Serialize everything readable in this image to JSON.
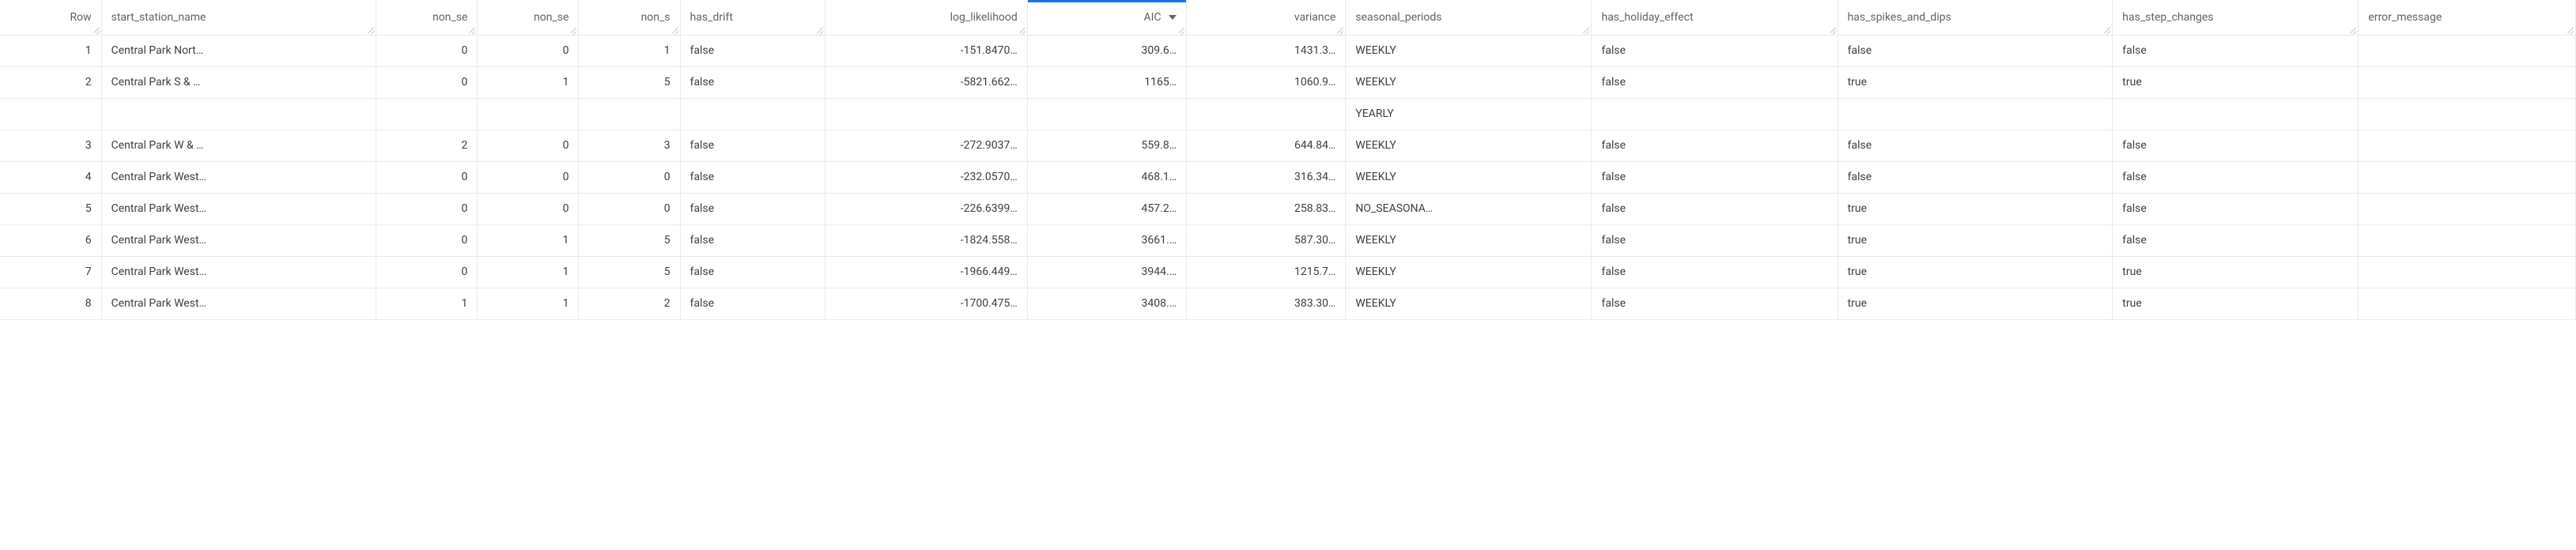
{
  "columns": {
    "row": {
      "label": "Row",
      "align": "right",
      "sorted": false
    },
    "name": {
      "label": "start_station_name",
      "align": "left",
      "sorted": false
    },
    "ns1": {
      "label": "non_se",
      "align": "right",
      "sorted": false
    },
    "ns2": {
      "label": "non_se",
      "align": "right",
      "sorted": false
    },
    "ns3": {
      "label": "non_s",
      "align": "right",
      "sorted": false
    },
    "drift": {
      "label": "has_drift",
      "align": "left",
      "sorted": false
    },
    "ll": {
      "label": "log_likelihood",
      "align": "right",
      "sorted": false
    },
    "aic": {
      "label": "AIC",
      "align": "right",
      "sorted": true
    },
    "var": {
      "label": "variance",
      "align": "right",
      "sorted": false
    },
    "seas": {
      "label": "seasonal_periods",
      "align": "left",
      "sorted": false
    },
    "hol": {
      "label": "has_holiday_effect",
      "align": "left",
      "sorted": false
    },
    "spk": {
      "label": "has_spikes_and_dips",
      "align": "left",
      "sorted": false
    },
    "step": {
      "label": "has_step_changes",
      "align": "left",
      "sorted": false
    },
    "err": {
      "label": "error_message",
      "align": "left",
      "sorted": false
    }
  },
  "rows": [
    {
      "row": "1",
      "name": "Central Park Nort…",
      "ns1": "0",
      "ns2": "0",
      "ns3": "1",
      "drift": "false",
      "ll": "-151.8470…",
      "aic": "309.6…",
      "var": "1431.3…",
      "seas": "WEEKLY",
      "hol": "false",
      "spk": "false",
      "step": "false",
      "err": ""
    },
    {
      "row": "2",
      "name": "Central Park S & …",
      "ns1": "0",
      "ns2": "1",
      "ns3": "5",
      "drift": "false",
      "ll": "-5821.662…",
      "aic": "1165…",
      "var": "1060.9…",
      "seas": "WEEKLY",
      "hol": "false",
      "spk": "true",
      "step": "true",
      "err": ""
    },
    {
      "row": "",
      "name": "",
      "ns1": "",
      "ns2": "",
      "ns3": "",
      "drift": "",
      "ll": "",
      "aic": "",
      "var": "",
      "seas": "YEARLY",
      "hol": "",
      "spk": "",
      "step": "",
      "err": ""
    },
    {
      "row": "3",
      "name": "Central Park W & …",
      "ns1": "2",
      "ns2": "0",
      "ns3": "3",
      "drift": "false",
      "ll": "-272.9037…",
      "aic": "559.8…",
      "var": "644.84…",
      "seas": "WEEKLY",
      "hol": "false",
      "spk": "false",
      "step": "false",
      "err": ""
    },
    {
      "row": "4",
      "name": "Central Park West…",
      "ns1": "0",
      "ns2": "0",
      "ns3": "0",
      "drift": "false",
      "ll": "-232.0570…",
      "aic": "468.1…",
      "var": "316.34…",
      "seas": "WEEKLY",
      "hol": "false",
      "spk": "false",
      "step": "false",
      "err": ""
    },
    {
      "row": "5",
      "name": "Central Park West…",
      "ns1": "0",
      "ns2": "0",
      "ns3": "0",
      "drift": "false",
      "ll": "-226.6399…",
      "aic": "457.2…",
      "var": "258.83…",
      "seas": "NO_SEASONA…",
      "hol": "false",
      "spk": "true",
      "step": "false",
      "err": ""
    },
    {
      "row": "6",
      "name": "Central Park West…",
      "ns1": "0",
      "ns2": "1",
      "ns3": "5",
      "drift": "false",
      "ll": "-1824.558…",
      "aic": "3661.…",
      "var": "587.30…",
      "seas": "WEEKLY",
      "hol": "false",
      "spk": "true",
      "step": "false",
      "err": ""
    },
    {
      "row": "7",
      "name": "Central Park West…",
      "ns1": "0",
      "ns2": "1",
      "ns3": "5",
      "drift": "false",
      "ll": "-1966.449…",
      "aic": "3944.…",
      "var": "1215.7…",
      "seas": "WEEKLY",
      "hol": "false",
      "spk": "true",
      "step": "true",
      "err": ""
    },
    {
      "row": "8",
      "name": "Central Park West…",
      "ns1": "1",
      "ns2": "1",
      "ns3": "2",
      "drift": "false",
      "ll": "-1700.475…",
      "aic": "3408.…",
      "var": "383.30…",
      "seas": "WEEKLY",
      "hol": "false",
      "spk": "true",
      "step": "true",
      "err": ""
    }
  ]
}
